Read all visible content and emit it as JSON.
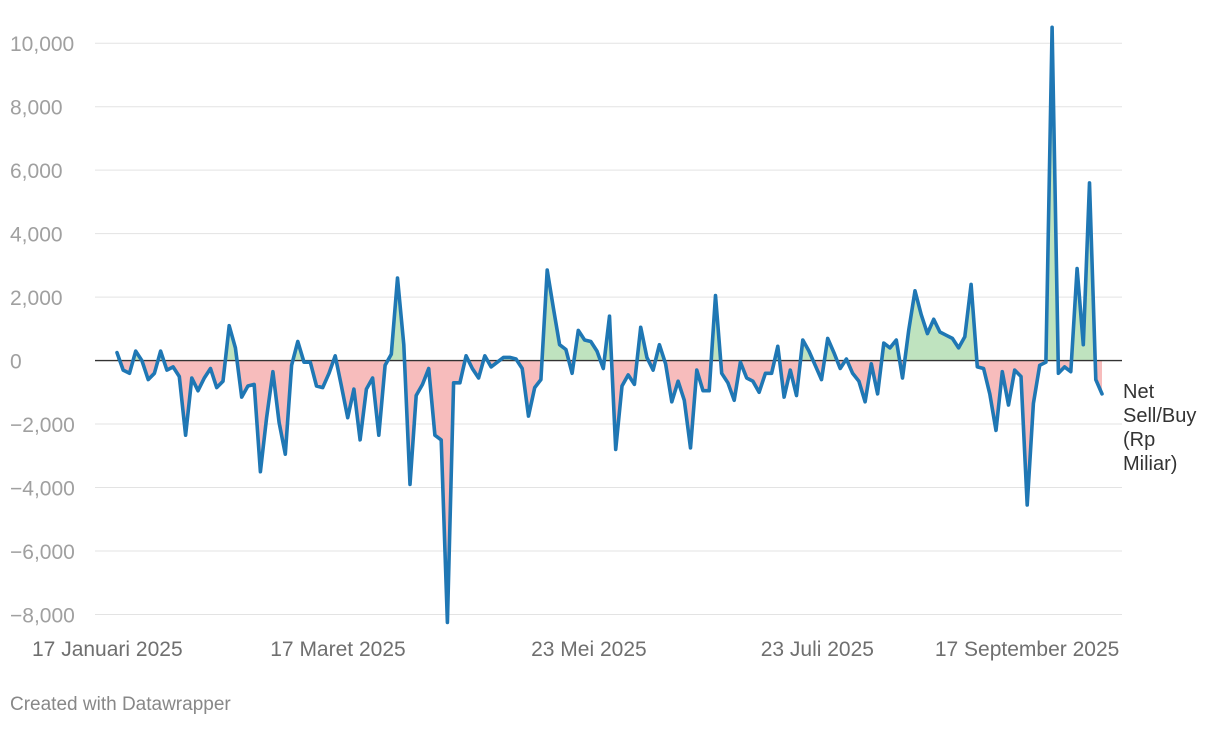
{
  "chart_data": {
    "type": "area",
    "title": "",
    "xlabel": "",
    "ylabel": "",
    "series_label_lines": [
      "Net",
      "Sell/Buy",
      "(Rp",
      "Miliar)"
    ],
    "ylim": [
      -8000,
      10000
    ],
    "y_ticks": [
      10000,
      8000,
      6000,
      4000,
      2000,
      0,
      -2000,
      -4000,
      -6000,
      -8000
    ],
    "y_tick_labels": [
      "10,000",
      "8,000",
      "6,000",
      "4,000",
      "2,000",
      "0",
      "−2,000",
      "−4,000",
      "−6,000",
      "−8,000"
    ],
    "x_ticks": [
      {
        "date": "2025-01-17",
        "label": "17 Januari 2025"
      },
      {
        "date": "2025-03-17",
        "label": "17 Maret 2025"
      },
      {
        "date": "2025-05-23",
        "label": "23 Mei 2025"
      },
      {
        "date": "2025-07-23",
        "label": "23 Juli 2025"
      },
      {
        "date": "2025-09-17",
        "label": "17 September 2025"
      }
    ],
    "xlim": [
      "2025-01-17",
      "2025-10-07"
    ],
    "grid": true,
    "colors": {
      "line": "#1f77b4",
      "positive_fill": "#bfe3bf",
      "negative_fill": "#f7bcbc",
      "zero_line": "#333333",
      "grid": "#e3e3e3"
    },
    "series": [
      {
        "name": "Net Sell/Buy (Rp Miliar)",
        "values": [
          250,
          -300,
          -400,
          300,
          0,
          -600,
          -400,
          300,
          -300,
          -200,
          -500,
          -2350,
          -550,
          -950,
          -550,
          -250,
          -850,
          -650,
          1100,
          400,
          -1150,
          -800,
          -750,
          -3500,
          -1800,
          -350,
          -1950,
          -2950,
          -150,
          600,
          -50,
          -50,
          -800,
          -850,
          -400,
          150,
          -800,
          -1800,
          -900,
          -2500,
          -900,
          -550,
          -2350,
          -150,
          200,
          2600,
          500,
          -3900,
          -1100,
          -750,
          -250,
          -2350,
          -2500,
          -8250,
          -700,
          -700,
          150,
          -250,
          -550,
          150,
          -200,
          -50,
          100,
          100,
          50,
          -250,
          -1750,
          -850,
          -600,
          2850,
          1650,
          500,
          350,
          -400,
          950,
          650,
          600,
          300,
          -250,
          1400,
          -2800,
          -800,
          -450,
          -750,
          1050,
          100,
          -300,
          500,
          -100,
          -1300,
          -650,
          -1250,
          -2750,
          -300,
          -950,
          -950,
          2050,
          -400,
          -700,
          -1250,
          -50,
          -550,
          -650,
          -1000,
          -400,
          -400,
          450,
          -1150,
          -300,
          -1100,
          650,
          300,
          -150,
          -600,
          700,
          250,
          -250,
          50,
          -400,
          -650,
          -1300,
          -100,
          -1050,
          550,
          400,
          650,
          -550,
          950,
          2200,
          1450,
          850,
          1300,
          900,
          800,
          700,
          400,
          750,
          2400,
          -200,
          -250,
          -1050,
          -2200,
          -350,
          -1400,
          -300,
          -500,
          -4550,
          -1350,
          -150,
          -50,
          10500,
          -400,
          -200,
          -350,
          2900,
          500,
          5600,
          -600,
          -1050
        ]
      }
    ]
  },
  "credit": "Created with Datawrapper"
}
